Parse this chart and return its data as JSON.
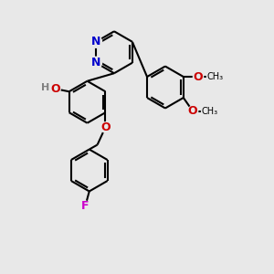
{
  "background_color": "#e8e8e8",
  "bond_color": "#000000",
  "N_color": "#0000cc",
  "O_color": "#cc0000",
  "F_color": "#cc00cc",
  "H_color": "#808080",
  "font_size": 8,
  "figsize": [
    3.0,
    3.0
  ],
  "dpi": 100,
  "xlim": [
    0,
    10
  ],
  "ylim": [
    0,
    10
  ]
}
